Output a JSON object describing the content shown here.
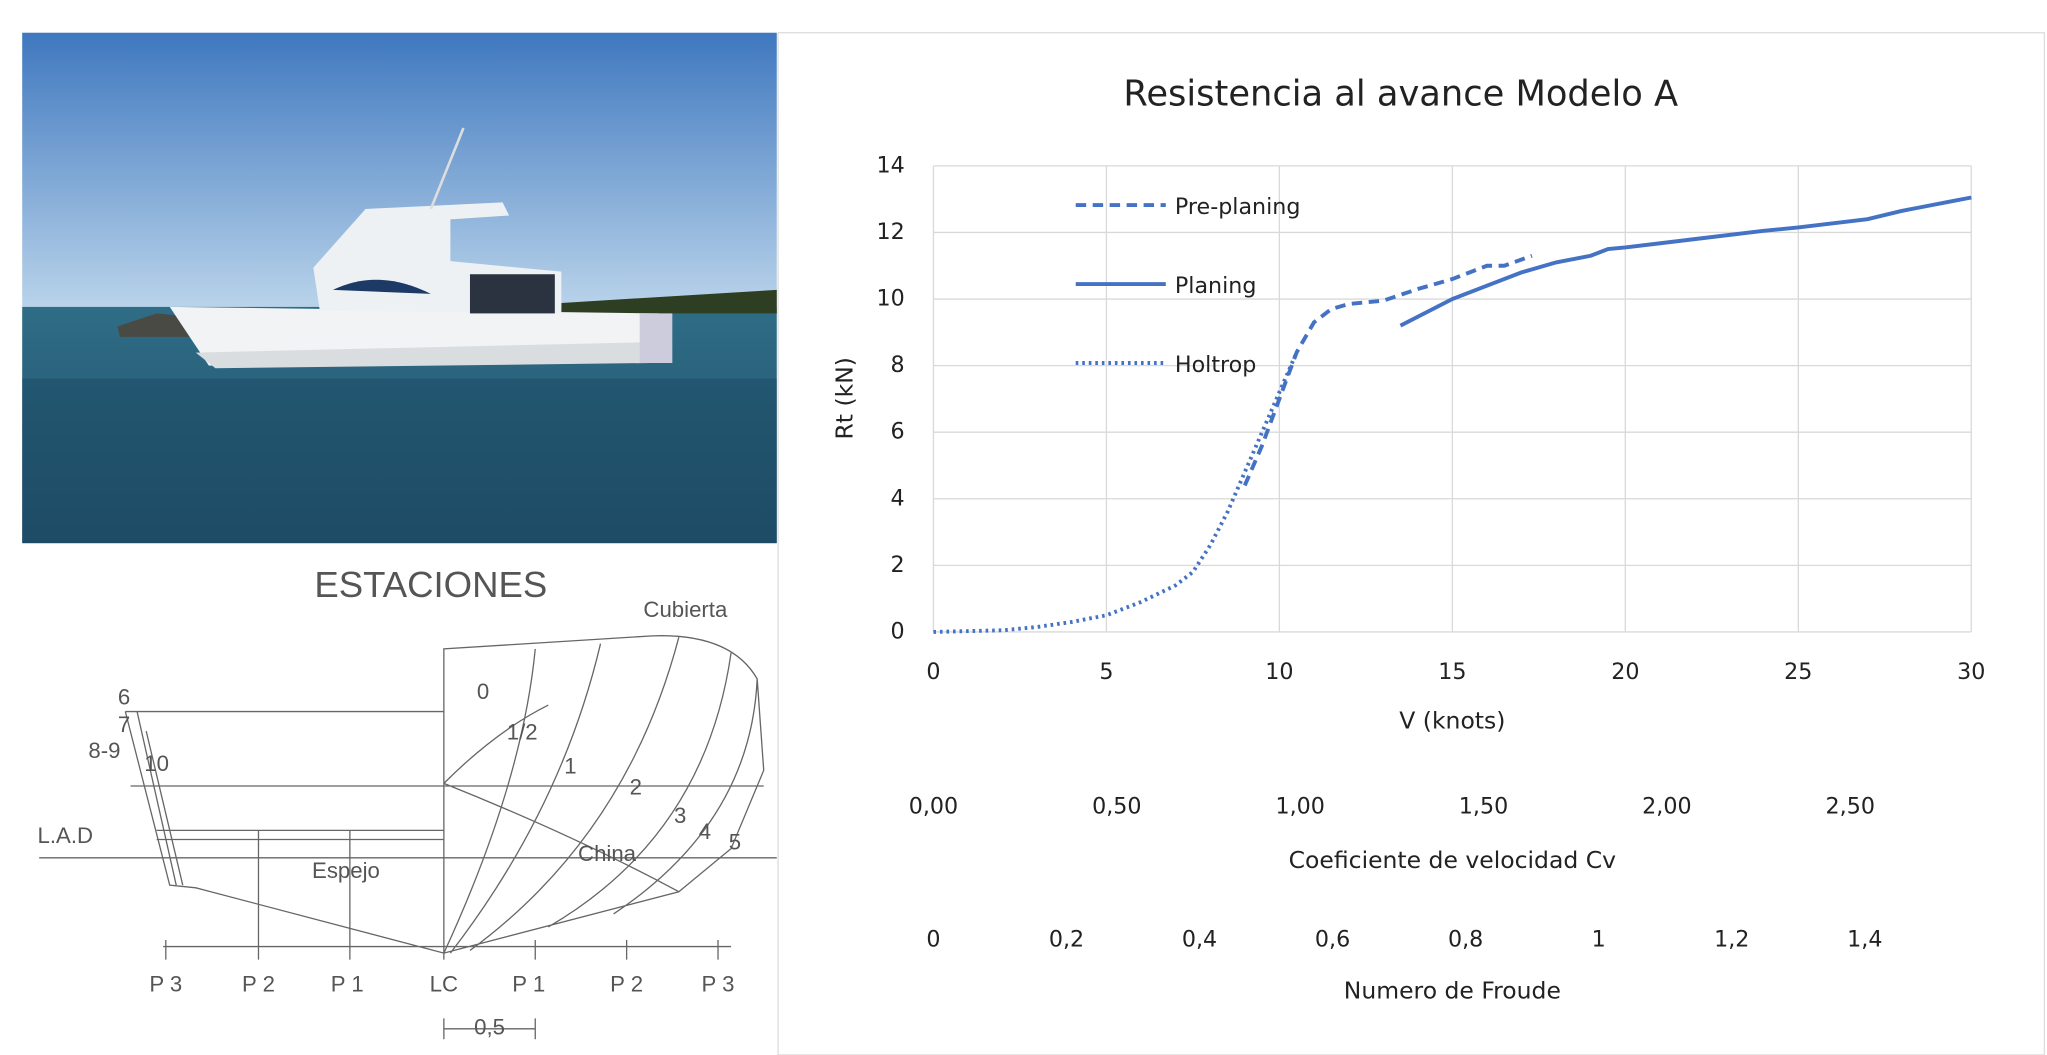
{
  "diagram": {
    "title": "ESTACIONES",
    "labels": [
      {
        "text": "Cubierta"
      },
      {
        "text": "6"
      },
      {
        "text": "7"
      },
      {
        "text": "8-9"
      },
      {
        "text": "10"
      },
      {
        "text": "L.A.D"
      },
      {
        "text": "Espejo"
      },
      {
        "text": "0"
      },
      {
        "text": "1/2"
      },
      {
        "text": "1"
      },
      {
        "text": "2"
      },
      {
        "text": "3"
      },
      {
        "text": "4"
      },
      {
        "text": "5"
      },
      {
        "text": "China"
      },
      {
        "text": "P 3"
      },
      {
        "text": "P 2"
      },
      {
        "text": "P 1"
      },
      {
        "text": "LC"
      },
      {
        "text": "P 1"
      },
      {
        "text": "P 2"
      },
      {
        "text": "P 3"
      },
      {
        "text": "0,5"
      }
    ]
  },
  "chart_data": {
    "type": "line",
    "title": "Resistencia al avance Modelo A",
    "x_label": "V (knots)",
    "y_label": "Rt (kN)",
    "xlim": [
      0,
      30
    ],
    "xticks": [
      0,
      5,
      10,
      15,
      20,
      25,
      30
    ],
    "ylim": [
      0,
      14
    ],
    "yticks": [
      0,
      2,
      4,
      6,
      8,
      10,
      12,
      14
    ],
    "grid": true,
    "legend": "upper left",
    "series": [
      {
        "name": "Pre-planing",
        "color": "#4472c4",
        "style": "dashed",
        "x": [
          9,
          9.5,
          10,
          10.5,
          11,
          11.5,
          12,
          13,
          14,
          15,
          16,
          16.5,
          17.3
        ],
        "values": [
          4.4,
          5.6,
          7,
          8.4,
          9.3,
          9.7,
          9.85,
          9.95,
          10.3,
          10.6,
          11.0,
          11.0,
          11.3
        ]
      },
      {
        "name": "Planing",
        "color": "#4472c4",
        "style": "solid",
        "x": [
          13.5,
          15,
          16,
          17,
          18,
          19,
          19.5,
          20,
          22,
          24,
          25,
          27,
          28,
          28.5,
          29.5,
          30
        ],
        "values": [
          9.2,
          10,
          10.4,
          10.8,
          11.1,
          11.3,
          11.5,
          11.55,
          11.8,
          12.05,
          12.15,
          12.4,
          12.65,
          12.75,
          12.95,
          13.05
        ]
      },
      {
        "name": "Holtrop",
        "color": "#4472c4",
        "style": "dotted",
        "x": [
          0,
          2,
          3,
          4,
          5,
          6,
          7,
          7.5,
          8,
          8.5,
          9,
          9.5,
          10,
          10.5
        ],
        "values": [
          0,
          0.05,
          0.15,
          0.3,
          0.5,
          0.9,
          1.4,
          1.8,
          2.6,
          3.6,
          4.8,
          6.0,
          7.2,
          8.4
        ]
      }
    ],
    "secondary_axes": [
      {
        "label": "Coeficiente de velocidad Cv",
        "xlim": [
          0,
          2.83
        ],
        "xticks": [
          {
            "value": 0,
            "label": "0,00"
          },
          {
            "value": 0.5,
            "label": "0,50"
          },
          {
            "value": 1,
            "label": "1,00"
          },
          {
            "value": 1.5,
            "label": "1,50"
          },
          {
            "value": 2,
            "label": "2,00"
          },
          {
            "value": 2.5,
            "label": "2,50"
          }
        ]
      },
      {
        "label": "Numero de Froude",
        "xlim": [
          0,
          1.56
        ],
        "xticks": [
          0,
          {
            "value": 0.2,
            "label": "0,2"
          },
          {
            "value": 0.4,
            "label": "0,4"
          },
          {
            "value": 0.6,
            "label": "0,6"
          },
          {
            "value": 0.8,
            "label": "0,8"
          },
          1,
          {
            "value": 1.2,
            "label": "1,2"
          },
          {
            "value": 1.4,
            "label": "1,4"
          }
        ]
      }
    ]
  }
}
